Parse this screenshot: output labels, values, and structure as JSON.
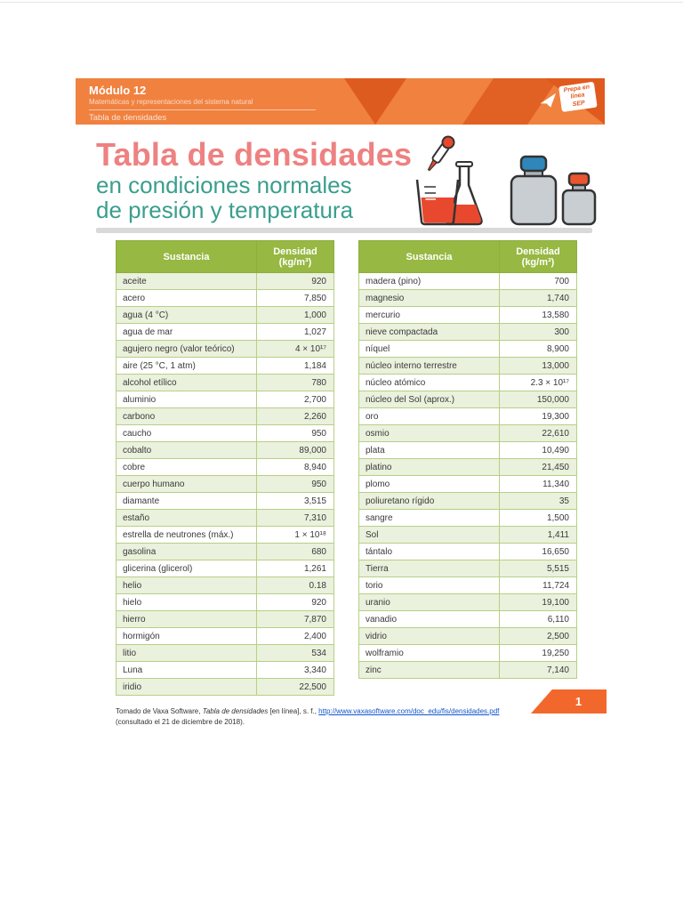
{
  "colors": {
    "banner_orange": "#F0813F",
    "banner_dark_orange": "#DE5B1F",
    "title_pink": "#EE8181",
    "title_teal": "#3A9E8D",
    "table_header_green": "#97B842",
    "table_row_green": "#EAF1DC",
    "table_border_green": "#B8CF86",
    "link_blue": "#1155CC",
    "page_tab_orange": "#F2682C",
    "liquid_red": "#E8492E",
    "cap_blue": "#2F86B8"
  },
  "banner": {
    "module": "Módulo 12",
    "course": "Matemáticas y representaciones del sistema natural",
    "section": "Tabla de densidades",
    "logo": {
      "line1": "Prepa en",
      "line2": "línea",
      "line3": "SEP"
    }
  },
  "title": {
    "line1": "Tabla de densidades",
    "line2": "en condiciones normales",
    "line3": "de presión y temperatura"
  },
  "table": {
    "substance_header": "Sustancia",
    "density_header_line1": "Densidad",
    "density_header_line2": "(kg/m³)",
    "left_rows": [
      [
        "aceite",
        "920"
      ],
      [
        "acero",
        "7,850"
      ],
      [
        "agua (4 °C)",
        "1,000"
      ],
      [
        "agua de mar",
        "1,027"
      ],
      [
        "agujero negro (valor teórico)",
        "4 × 10¹⁷"
      ],
      [
        "aire (25 °C, 1 atm)",
        "1,184"
      ],
      [
        "alcohol etílico",
        "780"
      ],
      [
        "aluminio",
        "2,700"
      ],
      [
        "carbono",
        "2,260"
      ],
      [
        "caucho",
        "950"
      ],
      [
        "cobalto",
        "89,000"
      ],
      [
        "cobre",
        "8,940"
      ],
      [
        "cuerpo humano",
        "950"
      ],
      [
        "diamante",
        "3,515"
      ],
      [
        "estaño",
        "7,310"
      ],
      [
        "estrella de neutrones (máx.)",
        "1 × 10¹⁸"
      ],
      [
        "gasolina",
        "680"
      ],
      [
        "glicerina (glicerol)",
        "1,261"
      ],
      [
        "helio",
        "0.18"
      ],
      [
        "hielo",
        "920"
      ],
      [
        "hierro",
        "7,870"
      ],
      [
        "hormigón",
        "2,400"
      ],
      [
        "litio",
        "534"
      ],
      [
        "Luna",
        "3,340"
      ],
      [
        "iridio",
        "22,500"
      ]
    ],
    "right_rows": [
      [
        "madera (pino)",
        "700"
      ],
      [
        "magnesio",
        "1,740"
      ],
      [
        "mercurio",
        "13,580"
      ],
      [
        "nieve compactada",
        "300"
      ],
      [
        "níquel",
        "8,900"
      ],
      [
        "núcleo interno terrestre",
        "13,000"
      ],
      [
        "núcleo atómico",
        "2.3 × 10¹⁷"
      ],
      [
        "núcleo del Sol (aprox.)",
        "150,000"
      ],
      [
        "oro",
        "19,300"
      ],
      [
        "osmio",
        "22,610"
      ],
      [
        "plata",
        "10,490"
      ],
      [
        "platino",
        "21,450"
      ],
      [
        "plomo",
        "11,340"
      ],
      [
        "poliuretano rígido",
        "35"
      ],
      [
        "sangre",
        "1,500"
      ],
      [
        "Sol",
        "1,411"
      ],
      [
        "tántalo",
        "16,650"
      ],
      [
        "Tierra",
        "5,515"
      ],
      [
        "torio",
        "11,724"
      ],
      [
        "uranio",
        "19,100"
      ],
      [
        "vanadio",
        "6,110"
      ],
      [
        "vidrio",
        "2,500"
      ],
      [
        "wolframio",
        "19,250"
      ],
      [
        "zinc",
        "7,140"
      ]
    ]
  },
  "footer": {
    "citation_part1": "Tomado de Vaxa Software, ",
    "citation_title": "Tabla de densidades",
    "citation_part2": " [en línea], s. f., ",
    "citation_link": "http://www.vaxasoftware.com/doc_edu/fis/densidades.pdf",
    "citation_line2": "(consultado el 21 de diciembre de 2018).",
    "page_number": "1"
  }
}
